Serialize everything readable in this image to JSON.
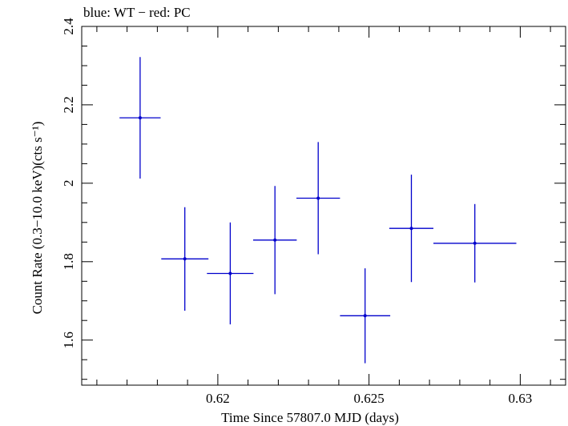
{
  "chart_data": {
    "type": "scatter",
    "title": "blue: WT − red: PC",
    "xlabel": "Time Since 57807.0 MJD (days)",
    "ylabel": "Count Rate (0.3−10.0 keV)(cts s⁻¹)",
    "xlim": [
      0.6155,
      0.6315
    ],
    "ylim": [
      1.485,
      2.4
    ],
    "x_ticks": [
      {
        "value": 0.62,
        "label": "0.62"
      },
      {
        "value": 0.625,
        "label": "0.625"
      },
      {
        "value": 0.63,
        "label": "0.63"
      }
    ],
    "y_ticks": [
      {
        "value": 1.6,
        "label": "1.6"
      },
      {
        "value": 1.8,
        "label": "1.8"
      },
      {
        "value": 2.0,
        "label": "2"
      },
      {
        "value": 2.2,
        "label": "2.2"
      },
      {
        "value": 2.4,
        "label": "2.4"
      }
    ],
    "grid": false,
    "series": [
      {
        "color": "#0000cc",
        "points": [
          {
            "x": 0.61743,
            "xerr": 0.00068,
            "y": 2.167,
            "yerr": 0.155
          },
          {
            "x": 0.61891,
            "xerr": 0.00078,
            "y": 1.807,
            "yerr": 0.132
          },
          {
            "x": 0.62041,
            "xerr": 0.00077,
            "y": 1.77,
            "yerr": 0.13
          },
          {
            "x": 0.62189,
            "xerr": 0.00072,
            "y": 1.855,
            "yerr": 0.138
          },
          {
            "x": 0.62332,
            "xerr": 0.00072,
            "y": 1.962,
            "yerr": 0.143
          },
          {
            "x": 0.62487,
            "xerr": 0.00083,
            "y": 1.662,
            "yerr": 0.121
          },
          {
            "x": 0.6264,
            "xerr": 0.00073,
            "y": 1.885,
            "yerr": 0.137
          },
          {
            "x": 0.6285,
            "xerr": 0.00137,
            "y": 1.847,
            "yerr": 0.1
          }
        ]
      }
    ]
  }
}
